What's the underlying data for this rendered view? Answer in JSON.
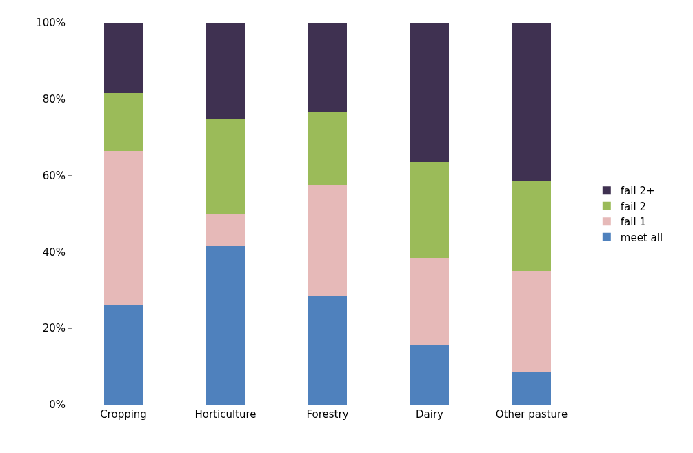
{
  "chart_data": {
    "type": "bar",
    "stacked": true,
    "categories": [
      "Cropping",
      "Horticulture",
      "Forestry",
      "Dairy",
      "Other pasture"
    ],
    "series": [
      {
        "name": "meet all",
        "color": "#4f81bd",
        "values": [
          26,
          41.5,
          28.5,
          15.5,
          8.5
        ]
      },
      {
        "name": "fail 1",
        "color": "#e6b9b8",
        "values": [
          40.5,
          8.5,
          29,
          23,
          26.5
        ]
      },
      {
        "name": "fail 2",
        "color": "#9bbb59",
        "values": [
          15,
          25,
          19,
          25,
          23.5
        ]
      },
      {
        "name": "fail 2+",
        "color": "#3f3151",
        "values": [
          18.5,
          25,
          23.5,
          36.5,
          41.5
        ]
      }
    ],
    "ylim": [
      0,
      100
    ],
    "yticks": [
      {
        "value": 0,
        "label": "0%"
      },
      {
        "value": 20,
        "label": "20%"
      },
      {
        "value": 40,
        "label": "40%"
      },
      {
        "value": 60,
        "label": "60%"
      },
      {
        "value": 80,
        "label": "80%"
      },
      {
        "value": 100,
        "label": "100%"
      }
    ],
    "legend": "right"
  }
}
